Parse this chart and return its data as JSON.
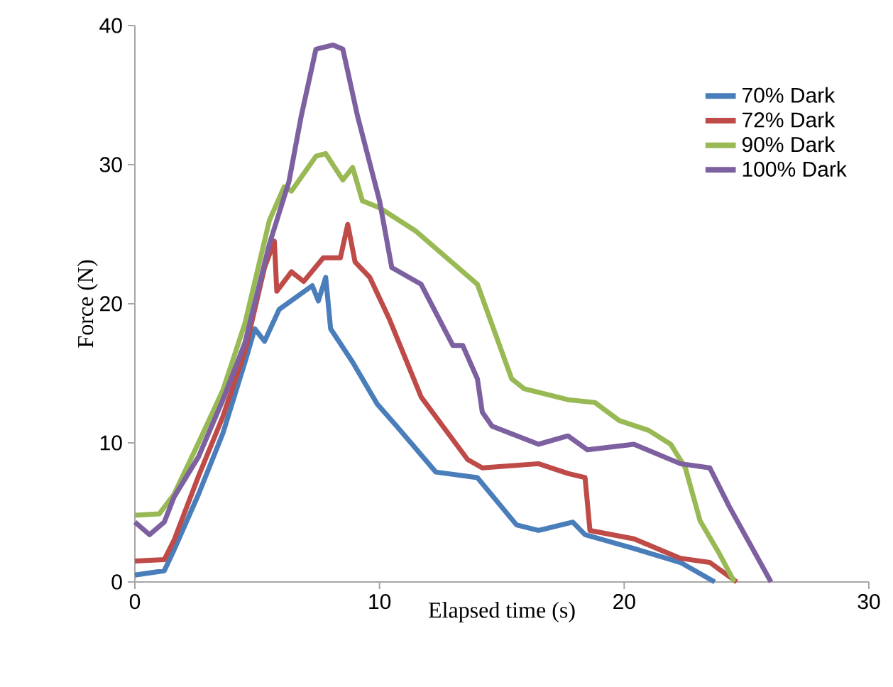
{
  "chart_data": {
    "type": "line",
    "xlabel": "Elapsed time (s)",
    "ylabel": "Force (N)",
    "xlim": [
      0,
      30
    ],
    "ylim": [
      0,
      40
    ],
    "xticks": [
      0,
      10,
      20,
      30
    ],
    "yticks": [
      0,
      10,
      20,
      30,
      40
    ],
    "grid": false,
    "legend": "top right",
    "marker": "none",
    "line_style": "solid",
    "series": [
      {
        "name": "70% Dark",
        "color": "#4a7ebb",
        "x": [
          0,
          1.2,
          1.6,
          2.6,
          3.6,
          4.5,
          4.9,
          5.3,
          5.9,
          7.25,
          7.5,
          7.8,
          8.0,
          8.9,
          9.9,
          10.7,
          12.3,
          14.0,
          15.6,
          16.5,
          17.9,
          18.4,
          20.4,
          22.3,
          23.7
        ],
        "values": [
          0.5,
          0.8,
          2.3,
          6.3,
          10.7,
          15.8,
          18.2,
          17.3,
          19.6,
          21.3,
          20.2,
          21.9,
          18.2,
          15.8,
          12.8,
          11.2,
          7.9,
          7.5,
          4.1,
          3.7,
          4.3,
          3.4,
          2.4,
          1.4,
          0
        ]
      },
      {
        "name": "72% Dark",
        "color": "#be4b48",
        "x": [
          0,
          1.2,
          1.6,
          2.6,
          3.6,
          4.5,
          5.3,
          5.7,
          5.8,
          6.4,
          6.9,
          7.7,
          8.4,
          8.7,
          9.0,
          9.6,
          10.4,
          11.7,
          13.6,
          14.2,
          16.5,
          17.7,
          18.4,
          18.6,
          20.4,
          22.3,
          23.5,
          24.6
        ],
        "values": [
          1.5,
          1.6,
          3.0,
          7.6,
          11.9,
          16.6,
          22.6,
          24.5,
          20.9,
          22.3,
          21.6,
          23.3,
          23.3,
          25.7,
          23.0,
          21.9,
          18.9,
          13.3,
          8.8,
          8.2,
          8.5,
          7.8,
          7.5,
          3.7,
          3.1,
          1.7,
          1.4,
          0
        ]
      },
      {
        "name": "90% Dark",
        "color": "#98b954",
        "x": [
          0,
          1.0,
          1.6,
          2.6,
          3.6,
          4.5,
          5.5,
          6.1,
          6.4,
          7.4,
          7.8,
          8.5,
          8.9,
          9.3,
          10.0,
          11.5,
          14.0,
          15.4,
          15.9,
          17.7,
          18.8,
          19.8,
          21.0,
          21.9,
          22.5,
          23.1,
          23.9,
          24.5
        ],
        "values": [
          4.8,
          4.9,
          6.3,
          10.0,
          13.8,
          18.6,
          26.0,
          28.4,
          28.1,
          30.6,
          30.8,
          28.9,
          29.8,
          27.4,
          26.9,
          25.2,
          21.4,
          14.6,
          13.9,
          13.1,
          12.9,
          11.6,
          10.9,
          9.9,
          8.2,
          4.4,
          2.0,
          0
        ]
      },
      {
        "name": "100% Dark",
        "color": "#7d60a0",
        "x": [
          0,
          0.6,
          1.2,
          1.6,
          2.6,
          3.6,
          4.5,
          5.5,
          6.3,
          6.8,
          7.4,
          8.1,
          8.5,
          9.1,
          10.0,
          10.5,
          11.7,
          13.0,
          13.4,
          14.0,
          14.2,
          14.6,
          16.5,
          17.7,
          18.5,
          20.4,
          22.3,
          23.5,
          24.3,
          26.0
        ],
        "values": [
          4.3,
          3.4,
          4.3,
          6.1,
          9.0,
          13.1,
          17.2,
          24.3,
          28.8,
          33.5,
          38.3,
          38.6,
          38.3,
          33.5,
          27.4,
          22.6,
          21.4,
          17.0,
          17.0,
          14.6,
          12.2,
          11.2,
          9.9,
          10.5,
          9.5,
          9.9,
          8.5,
          8.2,
          5.4,
          0
        ]
      }
    ]
  }
}
